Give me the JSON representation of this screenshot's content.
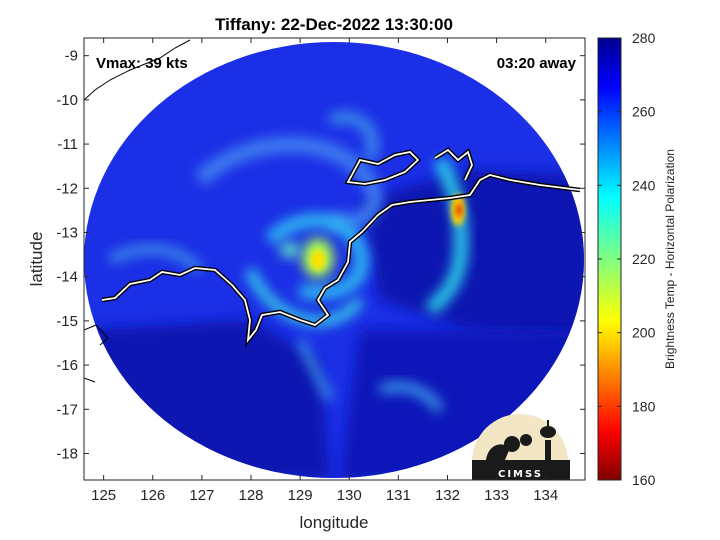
{
  "chart_data": {
    "type": "heatmap",
    "title": "Tiffany: 22-Dec-2022 13:30:00",
    "xlabel": "longitude",
    "ylabel": "latitude",
    "xlim": [
      124.6,
      134.8
    ],
    "ylim": [
      -18.6,
      -8.6
    ],
    "xticks": [
      125,
      126,
      127,
      128,
      129,
      130,
      131,
      132,
      133,
      134
    ],
    "yticks": [
      -9,
      -10,
      -11,
      -12,
      -13,
      -14,
      -15,
      -16,
      -17,
      -18
    ],
    "annotations": {
      "vmax": "Vmax: 39 kts",
      "away": "03:20 away"
    },
    "colorbar": {
      "label": "Brightness Temp - Horizontal Polarization",
      "range": [
        160,
        280
      ],
      "ticks": [
        280,
        260,
        240,
        220,
        200,
        180,
        160
      ],
      "colormap": "jet"
    },
    "swath_center": [
      129.8,
      -13.6
    ],
    "storm_center": [
      129.4,
      -13.7
    ],
    "features": [
      {
        "lon": 129.4,
        "lat": -13.7,
        "tb": 195
      },
      {
        "lon": 132.3,
        "lat": -12.5,
        "tb": 185
      },
      {
        "lon": 129.0,
        "lat": -13.5,
        "tb": 225
      },
      {
        "lon": 130.2,
        "lat": -13.9,
        "tb": 240
      },
      {
        "lon": 128.7,
        "lat": -14.2,
        "tb": 240
      }
    ],
    "grid": false,
    "logo": "CIMSS"
  }
}
